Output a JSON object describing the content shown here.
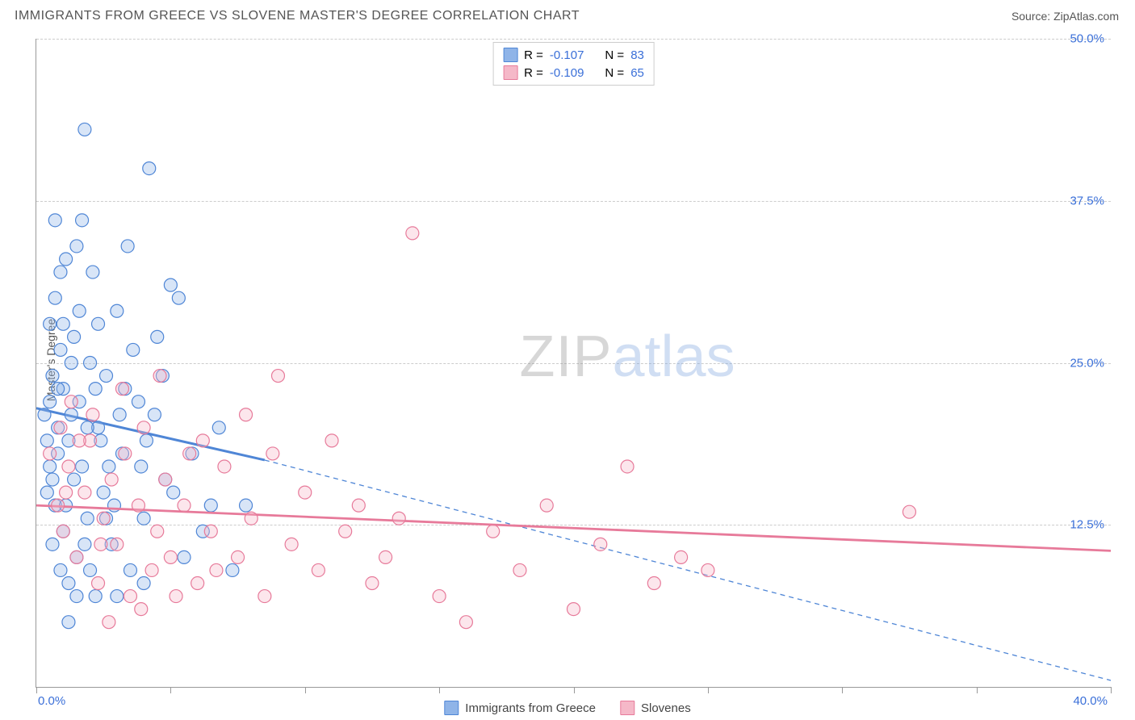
{
  "title": "IMMIGRANTS FROM GREECE VS SLOVENE MASTER'S DEGREE CORRELATION CHART",
  "source_label": "Source: ",
  "source_name": "ZipAtlas.com",
  "y_axis_label": "Master's Degree",
  "watermark_a": "ZIP",
  "watermark_b": "atlas",
  "chart": {
    "type": "scatter",
    "background_color": "#ffffff",
    "grid_color": "#cccccc",
    "axis_color": "#999999",
    "xlim": [
      0,
      40
    ],
    "ylim": [
      0,
      50
    ],
    "x_tick_positions": [
      0,
      5,
      10,
      15,
      20,
      25,
      30,
      35,
      40
    ],
    "x_tick_labels_shown": {
      "0": "0.0%",
      "40": "40.0%"
    },
    "y_gridlines": [
      12.5,
      25.0,
      37.5,
      50.0
    ],
    "y_tick_labels": {
      "12.5": "12.5%",
      "25.0": "25.0%",
      "37.5": "37.5%",
      "50.0": "50.0%"
    },
    "x_label_color_start": "#3a6fd8",
    "x_label_color_end": "#3a6fd8",
    "y_label_color": "#3a6fd8",
    "marker_radius": 8,
    "series": [
      {
        "name": "Immigrants from Greece",
        "color_fill": "#8fb4e8",
        "color_stroke": "#4f86d6",
        "R": "-0.107",
        "N": "83",
        "trend_solid": {
          "x1": 0,
          "y1": 21.5,
          "x2": 8.5,
          "y2": 17.5,
          "width": 3
        },
        "trend_dash": {
          "x1": 8.5,
          "y1": 17.5,
          "x2": 40,
          "y2": 0.5,
          "width": 1.3
        },
        "points": [
          [
            0.3,
            21
          ],
          [
            0.4,
            19
          ],
          [
            0.5,
            22
          ],
          [
            0.5,
            28
          ],
          [
            0.6,
            16
          ],
          [
            0.6,
            24
          ],
          [
            0.7,
            30
          ],
          [
            0.7,
            14
          ],
          [
            0.8,
            18
          ],
          [
            0.8,
            20
          ],
          [
            0.9,
            26
          ],
          [
            1.0,
            12
          ],
          [
            1.0,
            23
          ],
          [
            1.1,
            33
          ],
          [
            1.2,
            8
          ],
          [
            1.2,
            19
          ],
          [
            1.3,
            21
          ],
          [
            1.4,
            27
          ],
          [
            1.5,
            34
          ],
          [
            1.5,
            10
          ],
          [
            1.6,
            22
          ],
          [
            1.7,
            17
          ],
          [
            1.8,
            43
          ],
          [
            1.9,
            13
          ],
          [
            2.0,
            25
          ],
          [
            2.1,
            32
          ],
          [
            2.2,
            7
          ],
          [
            2.3,
            20
          ],
          [
            2.5,
            15
          ],
          [
            2.6,
            24
          ],
          [
            2.8,
            11
          ],
          [
            3.0,
            29
          ],
          [
            3.2,
            18
          ],
          [
            3.4,
            34
          ],
          [
            3.5,
            9
          ],
          [
            3.8,
            22
          ],
          [
            4.0,
            13
          ],
          [
            4.2,
            40
          ],
          [
            4.5,
            27
          ],
          [
            4.8,
            16
          ],
          [
            5.0,
            31
          ],
          [
            0.4,
            15
          ],
          [
            0.6,
            11
          ],
          [
            0.9,
            9
          ],
          [
            1.1,
            14
          ],
          [
            1.3,
            25
          ],
          [
            1.6,
            29
          ],
          [
            1.9,
            20
          ],
          [
            2.2,
            23
          ],
          [
            2.7,
            17
          ],
          [
            3.1,
            21
          ],
          [
            3.6,
            26
          ],
          [
            4.1,
            19
          ],
          [
            4.7,
            24
          ],
          [
            5.3,
            30
          ],
          [
            0.5,
            17
          ],
          [
            0.8,
            23
          ],
          [
            1.0,
            28
          ],
          [
            1.4,
            16
          ],
          [
            1.8,
            11
          ],
          [
            2.4,
            19
          ],
          [
            2.9,
            14
          ],
          [
            3.3,
            23
          ],
          [
            3.9,
            17
          ],
          [
            4.4,
            21
          ],
          [
            5.1,
            15
          ],
          [
            5.8,
            18
          ],
          [
            6.2,
            12
          ],
          [
            6.8,
            20
          ],
          [
            7.3,
            9
          ],
          [
            2.0,
            9
          ],
          [
            2.6,
            13
          ],
          [
            3.0,
            7
          ],
          [
            1.7,
            36
          ],
          [
            0.7,
            36
          ],
          [
            5.5,
            10
          ],
          [
            6.5,
            14
          ],
          [
            1.2,
            5
          ],
          [
            0.9,
            32
          ],
          [
            2.3,
            28
          ],
          [
            1.5,
            7
          ],
          [
            4.0,
            8
          ],
          [
            7.8,
            14
          ]
        ]
      },
      {
        "name": "Slovenes",
        "color_fill": "#f5b8c8",
        "color_stroke": "#e77a9a",
        "R": "-0.109",
        "N": "65",
        "trend_solid": {
          "x1": 0,
          "y1": 14.0,
          "x2": 40,
          "y2": 10.5,
          "width": 2.8
        },
        "trend_dash": null,
        "points": [
          [
            0.5,
            18
          ],
          [
            0.8,
            14
          ],
          [
            1.0,
            12
          ],
          [
            1.2,
            17
          ],
          [
            1.5,
            10
          ],
          [
            1.8,
            15
          ],
          [
            2.0,
            19
          ],
          [
            2.3,
            8
          ],
          [
            2.5,
            13
          ],
          [
            2.8,
            16
          ],
          [
            3.0,
            11
          ],
          [
            3.3,
            18
          ],
          [
            3.5,
            7
          ],
          [
            3.8,
            14
          ],
          [
            4.0,
            20
          ],
          [
            4.3,
            9
          ],
          [
            4.5,
            12
          ],
          [
            4.8,
            16
          ],
          [
            5.0,
            10
          ],
          [
            5.5,
            14
          ],
          [
            6.0,
            8
          ],
          [
            6.5,
            12
          ],
          [
            7.0,
            17
          ],
          [
            7.5,
            10
          ],
          [
            8.0,
            13
          ],
          [
            8.5,
            7
          ],
          [
            9.0,
            24
          ],
          [
            9.5,
            11
          ],
          [
            10.0,
            15
          ],
          [
            10.5,
            9
          ],
          [
            11.0,
            19
          ],
          [
            11.5,
            12
          ],
          [
            12.0,
            14
          ],
          [
            12.5,
            8
          ],
          [
            13.0,
            10
          ],
          [
            14.0,
            35
          ],
          [
            15.0,
            7
          ],
          [
            16.0,
            5
          ],
          [
            17.0,
            12
          ],
          [
            18.0,
            9
          ],
          [
            20.0,
            6
          ],
          [
            21.0,
            11
          ],
          [
            22.0,
            17
          ],
          [
            23.0,
            8
          ],
          [
            24.0,
            10
          ],
          [
            1.3,
            22
          ],
          [
            2.1,
            21
          ],
          [
            3.2,
            23
          ],
          [
            4.6,
            24
          ],
          [
            6.2,
            19
          ],
          [
            7.8,
            21
          ],
          [
            2.7,
            5
          ],
          [
            3.9,
            6
          ],
          [
            5.2,
            7
          ],
          [
            6.7,
            9
          ],
          [
            0.9,
            20
          ],
          [
            1.6,
            19
          ],
          [
            5.7,
            18
          ],
          [
            8.8,
            18
          ],
          [
            13.5,
            13
          ],
          [
            19.0,
            14
          ],
          [
            25.0,
            9
          ],
          [
            32.5,
            13.5
          ],
          [
            1.1,
            15
          ],
          [
            2.4,
            11
          ]
        ]
      }
    ],
    "legend_top": {
      "R_label": "R = ",
      "N_label": "N = ",
      "text_color": "#555555",
      "value_color": "#3a6fd8"
    },
    "legend_bottom_labels": [
      "Immigrants from Greece",
      "Slovenes"
    ]
  }
}
